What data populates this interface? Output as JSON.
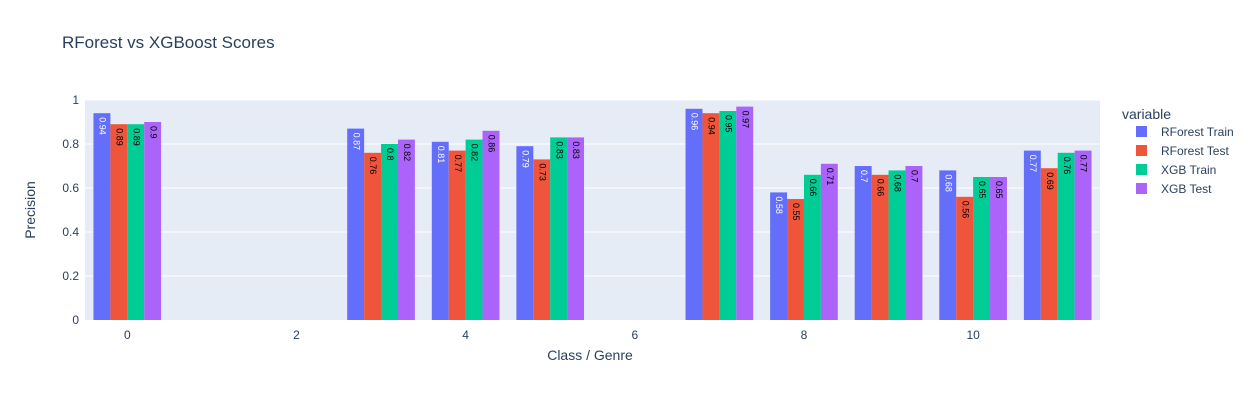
{
  "chart_data": {
    "type": "bar",
    "title": "RForest vs XGBoost Scores",
    "xlabel": "Class / Genre",
    "ylabel": "Precision",
    "x": [
      0,
      3,
      4,
      5,
      7,
      8,
      9,
      10,
      11
    ],
    "xlim": [
      -0.5,
      11.5
    ],
    "ylim": [
      0,
      1
    ],
    "x_ticks": [
      0,
      2,
      4,
      6,
      8,
      10
    ],
    "y_ticks": [
      0,
      0.2,
      0.4,
      0.6,
      0.8,
      1
    ],
    "grid": true,
    "legend_title": "variable",
    "legend_position": "right",
    "series": [
      {
        "name": "RForest Train",
        "color": "#636efa",
        "values": [
          0.94,
          0.87,
          0.81,
          0.79,
          0.96,
          0.58,
          0.7,
          0.68,
          0.77
        ]
      },
      {
        "name": "RForest Test",
        "color": "#ef553b",
        "values": [
          0.89,
          0.76,
          0.77,
          0.73,
          0.94,
          0.55,
          0.66,
          0.56,
          0.69
        ]
      },
      {
        "name": "XGB Train",
        "color": "#00cc96",
        "values": [
          0.89,
          0.8,
          0.82,
          0.83,
          0.95,
          0.66,
          0.68,
          0.65,
          0.76
        ]
      },
      {
        "name": "XGB Test",
        "color": "#ab63fa",
        "values": [
          0.9,
          0.82,
          0.86,
          0.83,
          0.97,
          0.71,
          0.7,
          0.65,
          0.77
        ]
      }
    ]
  }
}
